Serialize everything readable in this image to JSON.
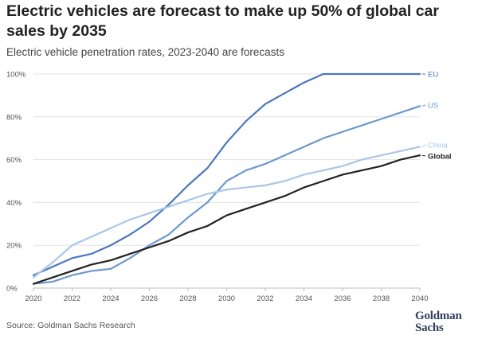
{
  "title": "Electric vehicles are forecast to make up 50% of global car sales by 2035",
  "subtitle": "Electric vehicle penetration rates, 2023-2040 are forecasts",
  "source": "Source: Goldman Sachs Research",
  "logo": {
    "line1": "Goldman",
    "line2": "Sachs"
  },
  "chart_data": {
    "type": "line",
    "title": "Electric vehicles are forecast to make up 50% of global car sales by 2035",
    "subtitle": "Electric vehicle penetration rates, 2023-2040 are forecasts",
    "xlabel": "",
    "ylabel": "",
    "x": [
      2020,
      2021,
      2022,
      2023,
      2024,
      2025,
      2026,
      2027,
      2028,
      2029,
      2030,
      2031,
      2032,
      2033,
      2034,
      2035,
      2036,
      2037,
      2038,
      2039,
      2040
    ],
    "xticks": [
      "2020",
      "2022",
      "2024",
      "2026",
      "2028",
      "2030",
      "2032",
      "2034",
      "2036",
      "2038",
      "2040"
    ],
    "yticks": [
      "0%",
      "20%",
      "40%",
      "60%",
      "80%",
      "100%"
    ],
    "ylim": [
      0,
      100
    ],
    "xlim": [
      2020,
      2040
    ],
    "grid": "horizontal",
    "legend": "direct labels at line ends (right)",
    "series": [
      {
        "name": "EU",
        "color": "#4a77bd",
        "values": [
          6,
          10,
          14,
          16,
          20,
          25,
          31,
          39,
          48,
          56,
          68,
          78,
          86,
          91,
          96,
          100,
          100,
          100,
          100,
          100,
          100
        ]
      },
      {
        "name": "US",
        "color": "#6d98cf",
        "values": [
          2,
          3,
          6,
          8,
          9,
          14,
          20,
          25,
          33,
          40,
          50,
          55,
          58,
          62,
          66,
          70,
          73,
          76,
          79,
          82,
          85
        ]
      },
      {
        "name": "China",
        "color": "#a9c7e8",
        "values": [
          5,
          12,
          20,
          24,
          28,
          32,
          35,
          38,
          41,
          44,
          46,
          47,
          48,
          50,
          53,
          55,
          57,
          60,
          62,
          64,
          66
        ]
      },
      {
        "name": "Global",
        "color": "#222222",
        "values": [
          2,
          5,
          8,
          11,
          13,
          16,
          19,
          22,
          26,
          29,
          34,
          37,
          40,
          43,
          47,
          50,
          53,
          55,
          57,
          60,
          62
        ]
      }
    ]
  }
}
